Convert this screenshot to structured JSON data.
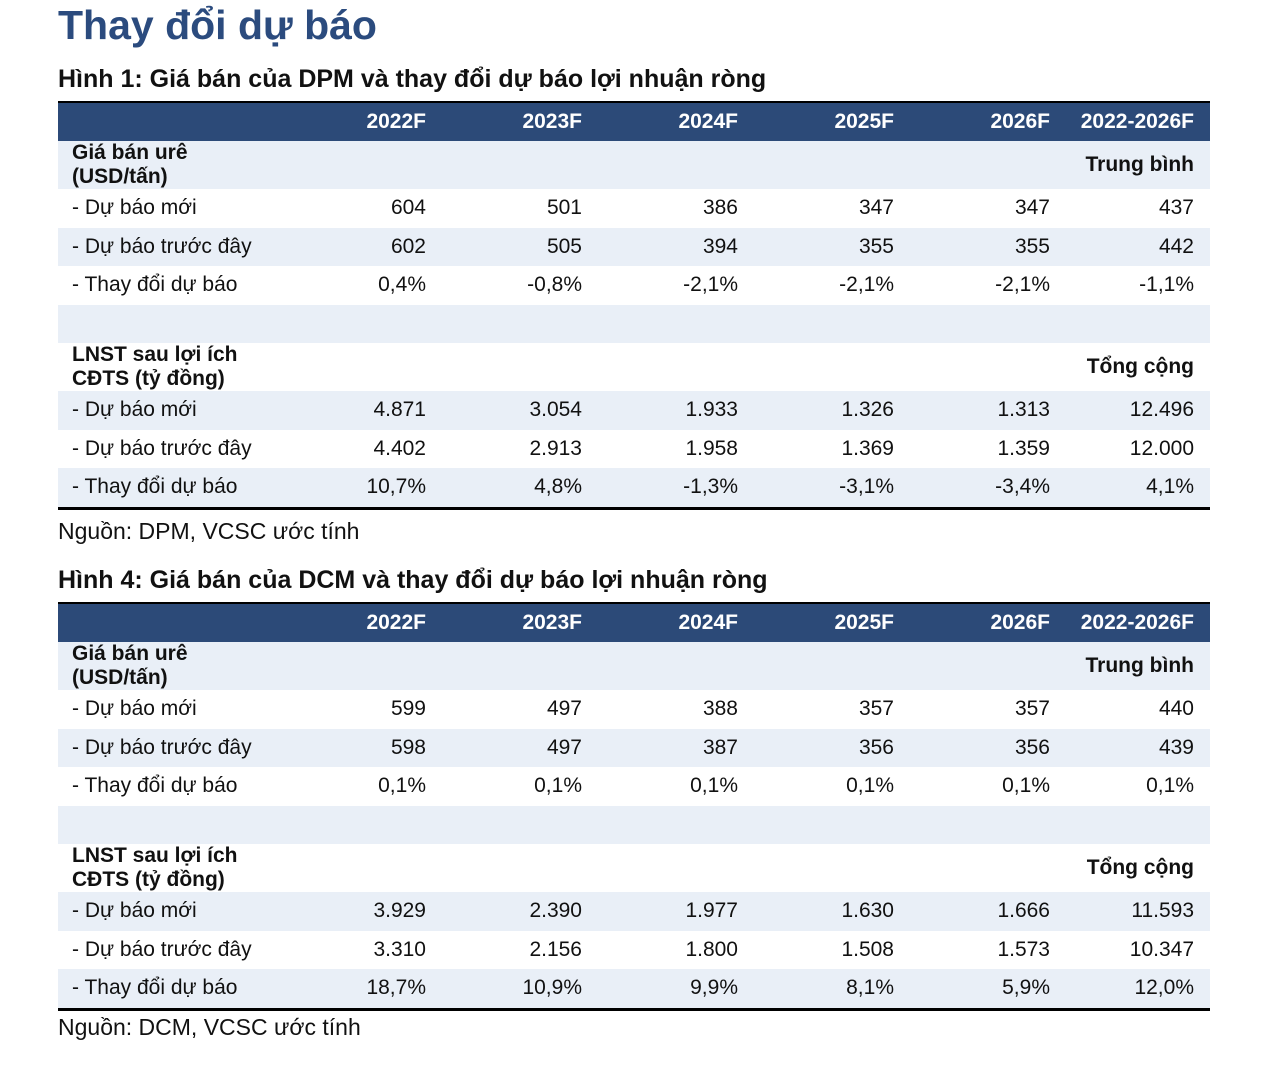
{
  "title": "Thay đổi dự báo",
  "tables": [
    {
      "caption": "Hình 1: Giá bán của DPM và thay đổi dự báo lợi nhuận ròng",
      "columns": [
        "2022F",
        "2023F",
        "2024F",
        "2025F",
        "2026F",
        "2022-2026F"
      ],
      "group1": {
        "label_line1": "Giá bán urê",
        "label_line2": "(USD/tấn)",
        "summary": "Trung bình"
      },
      "rows1": [
        {
          "label": "- Dự báo mới",
          "values": [
            "604",
            "501",
            "386",
            "347",
            "347",
            "437"
          ]
        },
        {
          "label": "- Dự báo trước đây",
          "values": [
            "602",
            "505",
            "394",
            "355",
            "355",
            "442"
          ]
        },
        {
          "label": "- Thay đổi dự báo",
          "values": [
            "0,4%",
            "-0,8%",
            "-2,1%",
            "-2,1%",
            "-2,1%",
            "-1,1%"
          ]
        }
      ],
      "group2": {
        "label_line1": "LNST sau lợi ích",
        "label_line2": "CĐTS (tỷ đồng)",
        "summary": "Tổng cộng"
      },
      "rows2": [
        {
          "label": "- Dự báo mới",
          "values": [
            "4.871",
            "3.054",
            "1.933",
            "1.326",
            "1.313",
            "12.496"
          ]
        },
        {
          "label": "- Dự báo trước đây",
          "values": [
            "4.402",
            "2.913",
            "1.958",
            "1.369",
            "1.359",
            "12.000"
          ]
        },
        {
          "label": "- Thay đổi dự báo",
          "values": [
            "10,7%",
            "4,8%",
            "-1,3%",
            "-3,1%",
            "-3,4%",
            "4,1%"
          ]
        }
      ],
      "source": "Nguồn: DPM, VCSC ước tính"
    },
    {
      "caption": "Hình 4: Giá bán của DCM và thay đổi dự báo lợi nhuận ròng",
      "columns": [
        "2022F",
        "2023F",
        "2024F",
        "2025F",
        "2026F",
        "2022-2026F"
      ],
      "group1": {
        "label_line1": "Giá bán urê",
        "label_line2": "(USD/tấn)",
        "summary": "Trung bình"
      },
      "rows1": [
        {
          "label": "- Dự báo mới",
          "values": [
            "599",
            "497",
            "388",
            "357",
            "357",
            "440"
          ]
        },
        {
          "label": "- Dự báo trước đây",
          "values": [
            "598",
            "497",
            "387",
            "356",
            "356",
            "439"
          ]
        },
        {
          "label": "- Thay đổi dự báo",
          "values": [
            "0,1%",
            "0,1%",
            "0,1%",
            "0,1%",
            "0,1%",
            "0,1%"
          ]
        }
      ],
      "group2": {
        "label_line1": "LNST sau lợi ích",
        "label_line2": "CĐTS  (tỷ đồng)",
        "summary": "Tổng cộng"
      },
      "rows2": [
        {
          "label": "- Dự báo mới",
          "values": [
            "3.929",
            "2.390",
            "1.977",
            "1.630",
            "1.666",
            "11.593"
          ]
        },
        {
          "label": "- Dự báo trước đây",
          "values": [
            "3.310",
            "2.156",
            "1.800",
            "1.508",
            "1.573",
            "10.347"
          ]
        },
        {
          "label": "- Thay đổi dự báo",
          "values": [
            "18,7%",
            "10,9%",
            "9,9%",
            "8,1%",
            "5,9%",
            "12,0%"
          ]
        }
      ],
      "source": "Nguồn: DCM, VCSC ước tính"
    }
  ],
  "colors": {
    "header_bg": "#2c4a78",
    "title": "#2b4b7e",
    "stripe": "#e9eff7"
  }
}
